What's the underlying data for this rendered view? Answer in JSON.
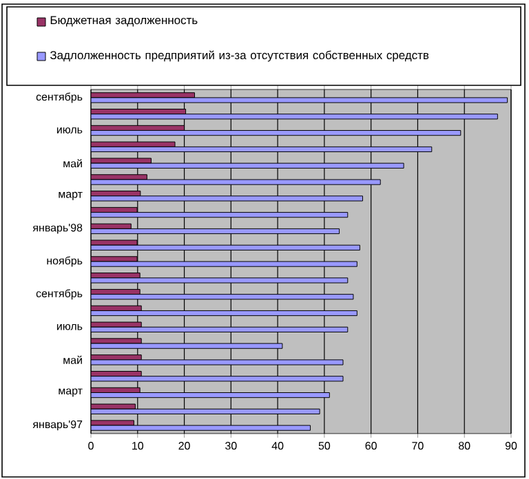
{
  "chart_data": {
    "type": "bar",
    "orientation": "horizontal",
    "categories": [
      "сентябрь",
      null,
      "июль",
      null,
      "май",
      null,
      "март",
      null,
      "январь'98",
      null,
      "ноябрь",
      null,
      "сентябрь",
      null,
      "июль",
      null,
      "май",
      null,
      "март",
      null,
      "январь'97"
    ],
    "series": [
      {
        "name": "Бюджетная задолженность",
        "color": "#993366",
        "values": [
          22.2,
          20.3,
          20,
          18,
          12.9,
          12,
          10.6,
          9.9,
          8.6,
          9.9,
          9.9,
          10.5,
          10.5,
          10.8,
          10.8,
          10.8,
          10.8,
          10.8,
          10.5,
          9.5,
          9.2
        ]
      },
      {
        "name": "Задлолженность предприятий из-за отсутствия собственных средств",
        "color": "#9999ff",
        "values": [
          89.2,
          87.1,
          79.2,
          73,
          67,
          62,
          58.2,
          55,
          53.2,
          57.6,
          57,
          55,
          56.2,
          57,
          55,
          41,
          54,
          54,
          51.1,
          49,
          47
        ]
      }
    ],
    "xlim": [
      0,
      90
    ],
    "xticks": [
      0,
      10,
      20,
      30,
      40,
      50,
      60,
      70,
      80,
      90
    ],
    "grid": "x",
    "legend": "top"
  }
}
